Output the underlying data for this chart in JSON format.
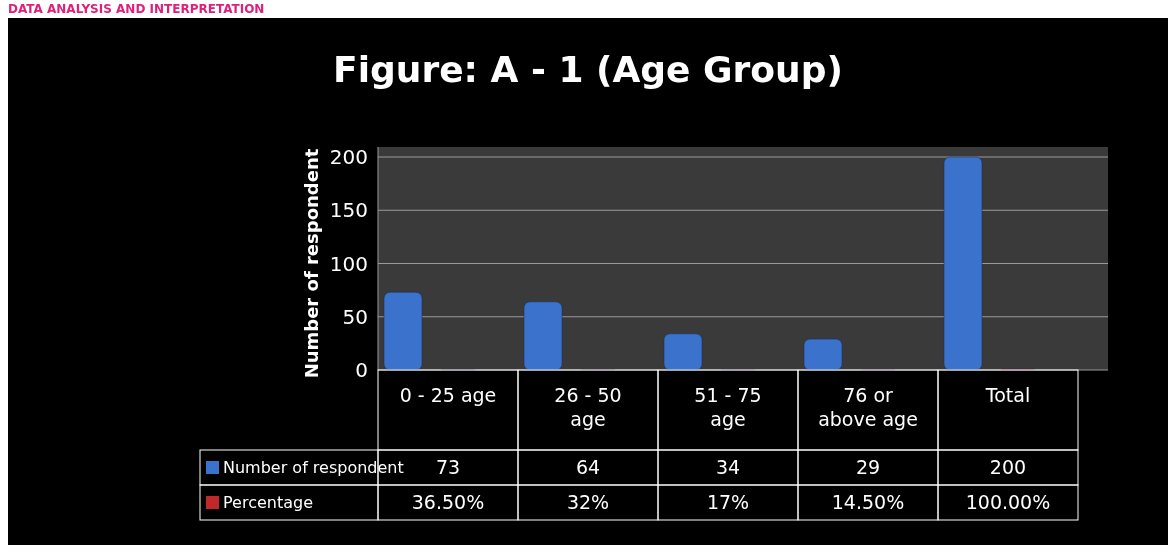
{
  "chart_data": {
    "type": "bar",
    "title": "Figure: A - 1 (Age Group)",
    "ylabel": "Number of respondent",
    "annotations": [
      "DATA ANALYSIS AND INTERPRETATION"
    ],
    "categories": [
      "0 - 25 age",
      "26 - 50 age",
      "51 - 75 age",
      "76 or above age",
      "Total"
    ],
    "series": [
      {
        "name": "Number of respondent",
        "color": "#3a72cc",
        "values": [
          73,
          64,
          34,
          29,
          200
        ],
        "value_labels": [
          "73",
          "64",
          "34",
          "29",
          "200"
        ]
      },
      {
        "name": "Percentage",
        "color": "#c0282a",
        "values": [
          0.365,
          0.32,
          0.17,
          0.145,
          1
        ],
        "value_labels": [
          "36.50%",
          "32%",
          "17%",
          "14.50%",
          "100.00%"
        ]
      }
    ],
    "ylim": [
      0,
      200
    ],
    "yticks": [
      0,
      50,
      100,
      150,
      200
    ],
    "grid": "y",
    "legend": "bottom"
  }
}
